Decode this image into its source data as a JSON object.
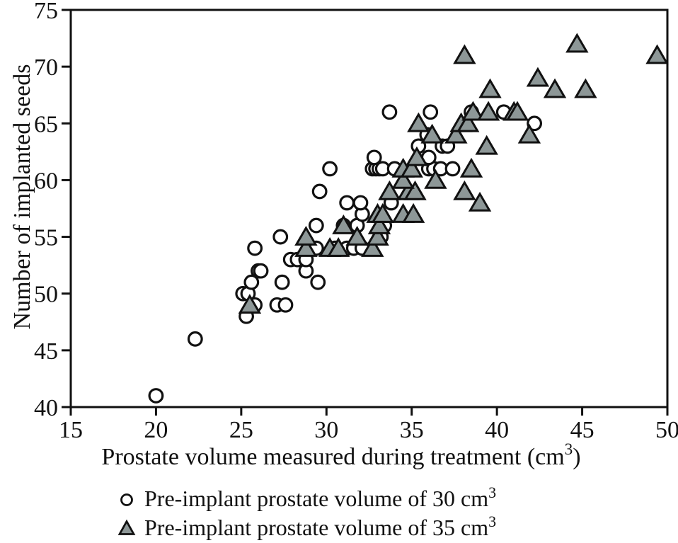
{
  "chart_data": {
    "type": "scatter",
    "title": "",
    "xlabel": "Prostate volume measured during treatment (cm³)",
    "xlabel_parts": {
      "pre": "Prostate volume measured during treatment (cm",
      "sup": "3",
      "post": ")"
    },
    "ylabel": "Number of implanted seeds",
    "xlim": [
      15,
      50
    ],
    "ylim": [
      40,
      75
    ],
    "xticks": [
      15,
      20,
      25,
      30,
      35,
      40,
      45,
      50
    ],
    "yticks": [
      40,
      45,
      50,
      55,
      60,
      65,
      70,
      75
    ],
    "grid": false,
    "legend_position": "below-chart",
    "axis_color": "#111111",
    "series": [
      {
        "name": "Pre-implant prostate volume of 30 cm³",
        "label_parts": {
          "pre": "Pre-implant prostate volume of 30 cm",
          "sup": "3"
        },
        "marker": "circle",
        "fill": "#ffffff",
        "stroke": "#111111",
        "points": [
          [
            20.0,
            41
          ],
          [
            22.3,
            46
          ],
          [
            25.3,
            48
          ],
          [
            25.8,
            49
          ],
          [
            27.1,
            49
          ],
          [
            27.6,
            49
          ],
          [
            25.1,
            50
          ],
          [
            25.4,
            50
          ],
          [
            25.6,
            51
          ],
          [
            27.4,
            51
          ],
          [
            29.5,
            51
          ],
          [
            26.0,
            52
          ],
          [
            26.15,
            52
          ],
          [
            28.8,
            52
          ],
          [
            27.9,
            53
          ],
          [
            28.3,
            53
          ],
          [
            28.8,
            53
          ],
          [
            25.8,
            54
          ],
          [
            29.4,
            54
          ],
          [
            30.5,
            54
          ],
          [
            31.2,
            54
          ],
          [
            31.6,
            54
          ],
          [
            32.1,
            54
          ],
          [
            27.3,
            55
          ],
          [
            33.2,
            55
          ],
          [
            29.4,
            56
          ],
          [
            31.0,
            56
          ],
          [
            31.8,
            56
          ],
          [
            33.4,
            56
          ],
          [
            32.1,
            57
          ],
          [
            31.2,
            58
          ],
          [
            32.0,
            58
          ],
          [
            33.8,
            58
          ],
          [
            29.6,
            59
          ],
          [
            30.2,
            61
          ],
          [
            32.7,
            61
          ],
          [
            32.9,
            61
          ],
          [
            33.1,
            61
          ],
          [
            33.3,
            61
          ],
          [
            34.0,
            61
          ],
          [
            36.0,
            61
          ],
          [
            36.3,
            61
          ],
          [
            36.7,
            61
          ],
          [
            37.4,
            61
          ],
          [
            32.8,
            62
          ],
          [
            36.0,
            62
          ],
          [
            35.4,
            63
          ],
          [
            36.8,
            63
          ],
          [
            37.1,
            63
          ],
          [
            35.9,
            64
          ],
          [
            42.2,
            65
          ],
          [
            33.7,
            66
          ],
          [
            36.1,
            66
          ],
          [
            38.5,
            66
          ],
          [
            40.4,
            66
          ]
        ]
      },
      {
        "name": "Pre-implant prostate volume of 35 cm³",
        "label_parts": {
          "pre": "Pre-implant prostate volume of 35 cm",
          "sup": "3"
        },
        "marker": "triangle",
        "fill": "#8d9797",
        "stroke": "#111111",
        "points": [
          [
            25.5,
            49
          ],
          [
            28.8,
            54
          ],
          [
            30.2,
            54
          ],
          [
            30.7,
            54
          ],
          [
            32.7,
            54
          ],
          [
            28.8,
            55
          ],
          [
            31.8,
            55
          ],
          [
            33.0,
            55
          ],
          [
            31.0,
            56
          ],
          [
            33.1,
            56
          ],
          [
            33.0,
            57
          ],
          [
            33.3,
            57
          ],
          [
            34.5,
            57
          ],
          [
            35.1,
            57
          ],
          [
            39.0,
            58
          ],
          [
            33.7,
            59
          ],
          [
            34.8,
            59
          ],
          [
            35.2,
            59
          ],
          [
            38.1,
            59
          ],
          [
            34.5,
            60
          ],
          [
            36.4,
            60
          ],
          [
            34.5,
            61
          ],
          [
            35.0,
            61
          ],
          [
            38.5,
            61
          ],
          [
            35.3,
            62
          ],
          [
            39.4,
            63
          ],
          [
            36.2,
            64
          ],
          [
            37.6,
            64
          ],
          [
            41.9,
            64
          ],
          [
            35.4,
            65
          ],
          [
            37.9,
            65
          ],
          [
            38.3,
            65
          ],
          [
            38.6,
            66
          ],
          [
            39.5,
            66
          ],
          [
            41.0,
            66
          ],
          [
            41.2,
            66
          ],
          [
            39.6,
            68
          ],
          [
            43.4,
            68
          ],
          [
            45.2,
            68
          ],
          [
            42.4,
            69
          ],
          [
            38.1,
            71
          ],
          [
            49.4,
            71
          ],
          [
            44.7,
            72
          ]
        ]
      }
    ]
  },
  "legend": {
    "rows": [
      {
        "marker": "circle-marker",
        "pre": "Pre-implant prostate volume of 30 cm",
        "sup": "3"
      },
      {
        "marker": "triangle-marker",
        "pre": "Pre-implant prostate volume of 35 cm",
        "sup": "3"
      }
    ]
  }
}
